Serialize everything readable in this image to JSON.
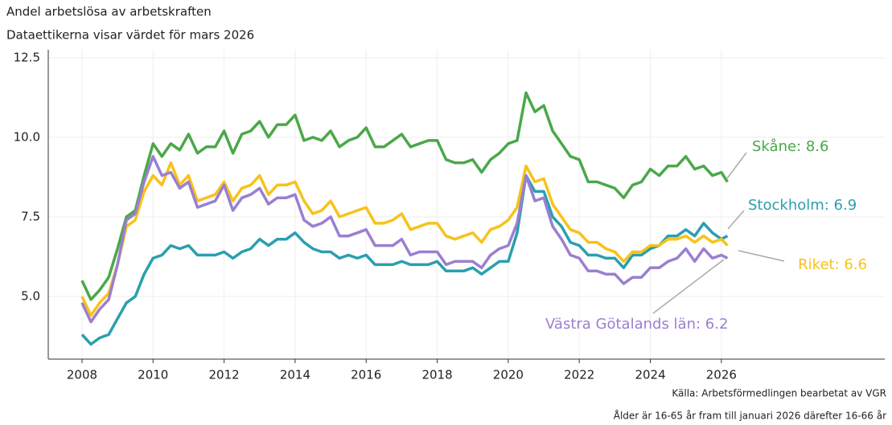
{
  "chart_data": {
    "type": "line",
    "title": "Andel arbetslösa av arbetskraften",
    "subtitle": "Dataettikerna visar värdet för mars 2026",
    "source": "Källa: Arbetsförmedlingen bearbetat av VGR",
    "note": "Ålder är 16-65 år fram till januari 2026 därefter 16-66 år",
    "x": [
      2008,
      2008.25,
      2008.5,
      2008.75,
      2009,
      2009.25,
      2009.5,
      2009.75,
      2010,
      2010.25,
      2010.5,
      2010.75,
      2011,
      2011.25,
      2011.5,
      2011.75,
      2012,
      2012.25,
      2012.5,
      2012.75,
      2013,
      2013.25,
      2013.5,
      2013.75,
      2014,
      2014.25,
      2014.5,
      2014.75,
      2015,
      2015.25,
      2015.5,
      2015.75,
      2016,
      2016.25,
      2016.5,
      2016.75,
      2017,
      2017.25,
      2017.5,
      2017.75,
      2018,
      2018.25,
      2018.5,
      2018.75,
      2019,
      2019.25,
      2019.5,
      2019.75,
      2020,
      2020.25,
      2020.5,
      2020.75,
      2021,
      2021.25,
      2021.5,
      2021.75,
      2022,
      2022.25,
      2022.5,
      2022.75,
      2023,
      2023.25,
      2023.5,
      2023.75,
      2024,
      2024.25,
      2024.5,
      2024.75,
      2025,
      2025.25,
      2025.5,
      2025.75,
      2026,
      2026.17
    ],
    "series": [
      {
        "name": "Skåne",
        "label": "Skåne: 8.6",
        "color": "#4aa84a",
        "values": [
          5.5,
          4.9,
          5.2,
          5.6,
          6.5,
          7.5,
          7.7,
          8.8,
          9.8,
          9.4,
          9.8,
          9.6,
          10.1,
          9.5,
          9.7,
          9.7,
          10.2,
          9.5,
          10.1,
          10.2,
          10.5,
          10.0,
          10.4,
          10.4,
          10.7,
          9.9,
          10.0,
          9.9,
          10.2,
          9.7,
          9.9,
          10.0,
          10.3,
          9.7,
          9.7,
          9.9,
          10.1,
          9.7,
          9.8,
          9.9,
          9.9,
          9.3,
          9.2,
          9.2,
          9.3,
          8.9,
          9.3,
          9.5,
          9.8,
          9.9,
          11.4,
          10.8,
          11.0,
          10.2,
          9.8,
          9.4,
          9.3,
          8.6,
          8.6,
          8.5,
          8.4,
          8.1,
          8.5,
          8.6,
          9.0,
          8.8,
          9.1,
          9.1,
          9.4,
          9.0,
          9.1,
          8.8,
          8.9,
          8.6
        ]
      },
      {
        "name": "Stockholm",
        "label": "Stockholm: 6.9",
        "color": "#2a9fb0",
        "values": [
          3.8,
          3.5,
          3.7,
          3.8,
          4.3,
          4.8,
          5.0,
          5.7,
          6.2,
          6.3,
          6.6,
          6.5,
          6.6,
          6.3,
          6.3,
          6.3,
          6.4,
          6.2,
          6.4,
          6.5,
          6.8,
          6.6,
          6.8,
          6.8,
          7.0,
          6.7,
          6.5,
          6.4,
          6.4,
          6.2,
          6.3,
          6.2,
          6.3,
          6.0,
          6.0,
          6.0,
          6.1,
          6.0,
          6.0,
          6.0,
          6.1,
          5.8,
          5.8,
          5.8,
          5.9,
          5.7,
          5.9,
          6.1,
          6.1,
          7.0,
          8.8,
          8.3,
          8.3,
          7.5,
          7.2,
          6.7,
          6.6,
          6.3,
          6.3,
          6.2,
          6.2,
          5.9,
          6.3,
          6.3,
          6.5,
          6.6,
          6.9,
          6.9,
          7.1,
          6.9,
          7.3,
          7.0,
          6.8,
          6.9
        ]
      },
      {
        "name": "Riket",
        "label": "Riket: 6.6",
        "color": "#f8c21a",
        "values": [
          5.0,
          4.4,
          4.8,
          5.1,
          6.0,
          7.2,
          7.4,
          8.3,
          8.8,
          8.5,
          9.2,
          8.5,
          8.8,
          8.0,
          8.1,
          8.2,
          8.6,
          8.0,
          8.4,
          8.5,
          8.8,
          8.2,
          8.5,
          8.5,
          8.6,
          8.0,
          7.6,
          7.7,
          8.0,
          7.5,
          7.6,
          7.7,
          7.8,
          7.3,
          7.3,
          7.4,
          7.6,
          7.1,
          7.2,
          7.3,
          7.3,
          6.9,
          6.8,
          6.9,
          7.0,
          6.7,
          7.1,
          7.2,
          7.4,
          7.8,
          9.1,
          8.6,
          8.7,
          7.9,
          7.5,
          7.1,
          7.0,
          6.7,
          6.7,
          6.5,
          6.4,
          6.1,
          6.4,
          6.4,
          6.6,
          6.6,
          6.8,
          6.8,
          6.9,
          6.7,
          6.9,
          6.7,
          6.8,
          6.6
        ]
      },
      {
        "name": "Västra Götalands län",
        "label": "Västra Götalands län: 6.2",
        "color": "#9a7fd1",
        "values": [
          4.8,
          4.2,
          4.6,
          4.9,
          6.0,
          7.4,
          7.6,
          8.6,
          9.4,
          8.8,
          8.9,
          8.4,
          8.6,
          7.8,
          7.9,
          8.0,
          8.5,
          7.7,
          8.1,
          8.2,
          8.4,
          7.9,
          8.1,
          8.1,
          8.2,
          7.4,
          7.2,
          7.3,
          7.5,
          6.9,
          6.9,
          7.0,
          7.1,
          6.6,
          6.6,
          6.6,
          6.8,
          6.3,
          6.4,
          6.4,
          6.4,
          6.0,
          6.1,
          6.1,
          6.1,
          5.9,
          6.3,
          6.5,
          6.6,
          7.3,
          8.8,
          8.0,
          8.1,
          7.2,
          6.8,
          6.3,
          6.2,
          5.8,
          5.8,
          5.7,
          5.7,
          5.4,
          5.6,
          5.6,
          5.9,
          5.9,
          6.1,
          6.2,
          6.5,
          6.1,
          6.5,
          6.2,
          6.3,
          6.2
        ]
      }
    ],
    "xlim": [
      2007.05,
      2030.6
    ],
    "xticks": [
      2008,
      2010,
      2012,
      2014,
      2016,
      2018,
      2020,
      2022,
      2024,
      2026
    ],
    "ylim": [
      3.03,
      12.75
    ],
    "yticks": [
      {
        "value": 5,
        "label": "5.0"
      },
      {
        "value": 7.5,
        "label": "7.5"
      },
      {
        "value": 10,
        "label": "10.0"
      },
      {
        "value": 12.5,
        "label": "12.5"
      }
    ],
    "grid": true
  }
}
